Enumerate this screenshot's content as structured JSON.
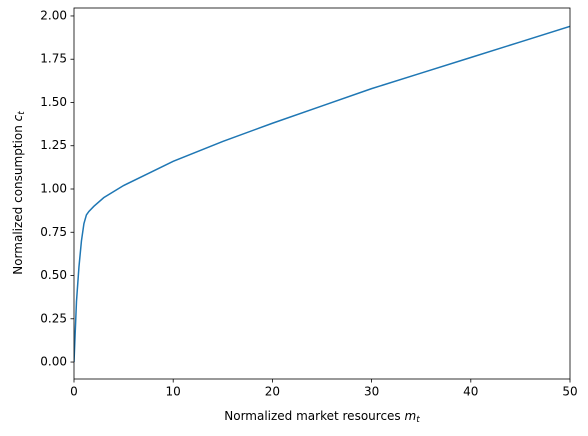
{
  "chart_data": {
    "type": "line",
    "xlabel": {
      "text": "Normalized market resources",
      "symbol": "m",
      "subscript": "t"
    },
    "ylabel": {
      "text": "Normalized consumption",
      "symbol": "c",
      "subscript": "t"
    },
    "x": [
      0,
      0.25,
      0.5,
      0.75,
      1,
      1.25,
      1.5,
      2,
      3,
      5,
      7.5,
      10,
      15,
      20,
      25,
      30,
      35,
      40,
      45,
      50
    ],
    "series": [
      {
        "color": "#1f77b4",
        "values": [
          0,
          0.35,
          0.55,
          0.7,
          0.8,
          0.85,
          0.87,
          0.9,
          0.95,
          1.02,
          1.09,
          1.16,
          1.275,
          1.38,
          1.48,
          1.58,
          1.67,
          1.76,
          1.85,
          1.94
        ]
      }
    ],
    "xlim": [
      0,
      50
    ],
    "xticks": [
      0,
      10,
      20,
      30,
      40,
      50
    ],
    "ylim": [
      -0.098,
      2.046
    ],
    "yticks": [
      {
        "value": 0,
        "label": "0.00"
      },
      {
        "value": 0.25,
        "label": "0.25"
      },
      {
        "value": 0.5,
        "label": "0.50"
      },
      {
        "value": 0.75,
        "label": "0.75"
      },
      {
        "value": 1,
        "label": "1.00"
      },
      {
        "value": 1.25,
        "label": "1.25"
      },
      {
        "value": 1.5,
        "label": "1.50"
      },
      {
        "value": 1.75,
        "label": "1.75"
      },
      {
        "value": 2,
        "label": "2.00"
      }
    ],
    "grid": false
  }
}
